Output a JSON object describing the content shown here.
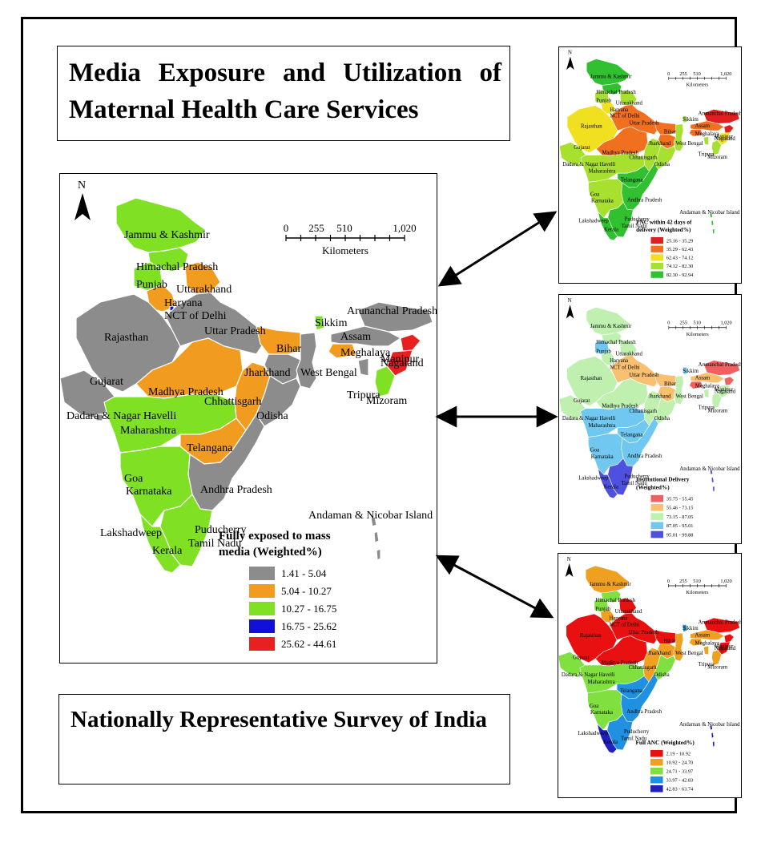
{
  "titles": {
    "top": "Media Exposure and Utilization of Maternal Health Care Services",
    "bottom": "Nationally Representative Survey of India"
  },
  "map_common": {
    "north": "N",
    "scale_ticks": [
      "0",
      "255",
      "510",
      "1,020"
    ],
    "scale_unit": "Kilometers",
    "state_labels": {
      "jk": "Jammu & Kashmir",
      "hp": "Himachal Pradesh",
      "pb": "Punjab",
      "uk": "Uttarakhand",
      "hr": "Haryana",
      "dl": "NCT of Delhi",
      "rj": "Rajasthan",
      "up": "Uttar Pradesh",
      "br": "Bihar",
      "sk": "Sikkim",
      "ar": "Arunanchal Pradesh",
      "as": "Assam",
      "nl": "Nagaland",
      "ml": "Meghalaya",
      "mn": "Manipur",
      "mz": "Mizoram",
      "tr": "Tripura",
      "gj": "Gujarat",
      "mp": "Madhya Pradesh",
      "jh": "Jharkhand",
      "wb": "West Bengal",
      "cg": "Chhattisgarh",
      "od": "Odisha",
      "dn": "Dadara & Nagar Havelli",
      "mh": "Maharashtra",
      "tg": "Telangana",
      "ap": "Andhra Pradesh",
      "ga": "Goa",
      "ka": "Karnataka",
      "an": "Andaman & Nicobar Island",
      "py": "Puducherry",
      "tn": "Tamil Nadu",
      "ld": "Lakshadweep",
      "kl": "Kerala"
    }
  },
  "maps": {
    "main": {
      "legend_title": [
        "Fully exposed to mass",
        "media (Weighted%)"
      ],
      "classes": [
        {
          "label": "1.41 - 5.04",
          "color": "#8c8c8c"
        },
        {
          "label": "5.04 - 10.27",
          "color": "#f29c1f"
        },
        {
          "label": "10.27 - 16.75",
          "color": "#7fe024"
        },
        {
          "label": "16.75 - 25.62",
          "color": "#1010d8"
        },
        {
          "label": "25.62 - 44.61",
          "color": "#e82020"
        }
      ],
      "state_class": {
        "jk": 2,
        "hp": 2,
        "pb": 2,
        "uk": 1,
        "hr": 1,
        "dl": 3,
        "rj": 0,
        "up": 0,
        "br": 1,
        "sk": 2,
        "ar": 0,
        "as": 0,
        "nl": 4,
        "ml": 1,
        "mn": 4,
        "mz": 2,
        "tr": 0,
        "gj": 0,
        "mp": 1,
        "jh": 0,
        "wb": 0,
        "cg": 1,
        "od": 0,
        "dn": 0,
        "mh": 2,
        "tg": 1,
        "ap": 0,
        "ga": 2,
        "ka": 2,
        "an": 0,
        "tn": 2,
        "kl": 2
      }
    },
    "pnc": {
      "legend_title": [
        "PNC within 42 days of",
        "delivery (Weighted%)"
      ],
      "classes": [
        {
          "label": "25.16 - 35.29",
          "color": "#e02020"
        },
        {
          "label": "35.29 - 62.43",
          "color": "#f07020"
        },
        {
          "label": "62.43 - 74.12",
          "color": "#f0e020"
        },
        {
          "label": "74.12 - 82.30",
          "color": "#a8e030"
        },
        {
          "label": "82.30 - 92.94",
          "color": "#30c030"
        }
      ],
      "state_class": {
        "jk": 4,
        "hp": 4,
        "pb": 3,
        "uk": 3,
        "hr": 2,
        "dl": 2,
        "rj": 2,
        "up": 1,
        "br": 1,
        "sk": 3,
        "ar": 0,
        "as": 1,
        "nl": 0,
        "ml": 1,
        "mn": 2,
        "mz": 3,
        "tr": 3,
        "gj": 3,
        "mp": 1,
        "jh": 1,
        "wb": 3,
        "cg": 3,
        "od": 3,
        "dn": 3,
        "mh": 3,
        "tg": 4,
        "ap": 4,
        "ga": 4,
        "ka": 3,
        "an": 4,
        "tn": 4,
        "kl": 4
      }
    },
    "inst": {
      "legend_title": [
        "Institutional Delivery",
        "(Weighted%)"
      ],
      "classes": [
        {
          "label": "35.75 - 55.45",
          "color": "#f06060"
        },
        {
          "label": "55.46 - 73.15",
          "color": "#f8c070"
        },
        {
          "label": "73.15 - 87.05",
          "color": "#c0f0b0"
        },
        {
          "label": "87.05 - 95.01",
          "color": "#70c8f0"
        },
        {
          "label": "95.01 - 99.88",
          "color": "#5050e0"
        }
      ],
      "state_class": {
        "jk": 2,
        "hp": 2,
        "pb": 3,
        "uk": 2,
        "hr": 2,
        "dl": 3,
        "rj": 2,
        "up": 1,
        "br": 1,
        "sk": 3,
        "ar": 0,
        "as": 1,
        "nl": 0,
        "ml": 0,
        "mn": 2,
        "mz": 2,
        "tr": 2,
        "gj": 2,
        "mp": 2,
        "jh": 1,
        "wb": 2,
        "cg": 2,
        "od": 2,
        "dn": 2,
        "mh": 3,
        "tg": 3,
        "ap": 3,
        "ga": 3,
        "ka": 3,
        "an": 4,
        "tn": 4,
        "kl": 4
      }
    },
    "anc": {
      "legend_title": [
        "Full ANC (Weighted%)"
      ],
      "classes": [
        {
          "label": "2.19 - 10.92",
          "color": "#e81010"
        },
        {
          "label": "10.92 - 24.70",
          "color": "#f0a020"
        },
        {
          "label": "24.71 - 33.97",
          "color": "#80e040"
        },
        {
          "label": "33.97 - 42.83",
          "color": "#2090e0"
        },
        {
          "label": "42.83 - 63.74",
          "color": "#2020c0"
        }
      ],
      "state_class": {
        "jk": 1,
        "hp": 2,
        "pb": 2,
        "uk": 0,
        "hr": 1,
        "dl": 2,
        "rj": 0,
        "up": 0,
        "br": 0,
        "sk": 3,
        "ar": 0,
        "as": 1,
        "nl": 0,
        "ml": 1,
        "mn": 0,
        "mz": 1,
        "tr": 1,
        "gj": 2,
        "mp": 0,
        "jh": 1,
        "wb": 1,
        "cg": 1,
        "od": 2,
        "dn": 2,
        "mh": 2,
        "tg": 3,
        "ap": 3,
        "ga": 3,
        "ka": 2,
        "an": 4,
        "tn": 3,
        "kl": 4
      }
    }
  }
}
